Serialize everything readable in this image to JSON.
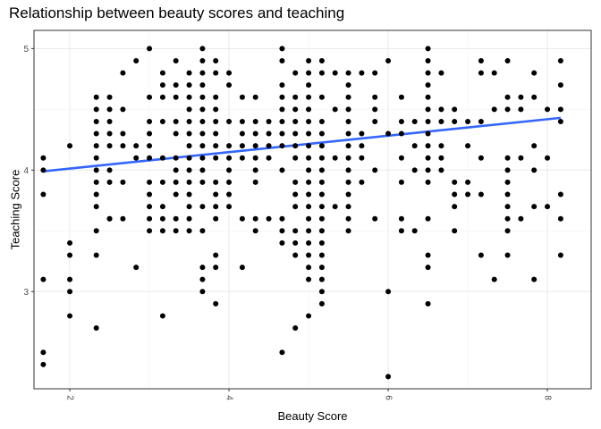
{
  "chart_data": {
    "type": "scatter",
    "title": "Relationship between beauty scores and teaching",
    "xlabel": "Beauty Score",
    "ylabel": "Teaching Score",
    "xlim": [
      1.55,
      8.55
    ],
    "ylim": [
      2.2,
      5.15
    ],
    "x_ticks": [
      {
        "value": 2,
        "label": "2"
      },
      {
        "value": 4,
        "label": "4"
      },
      {
        "value": 6,
        "label": "6"
      },
      {
        "value": 8,
        "label": "8"
      }
    ],
    "y_ticks": [
      {
        "value": 3,
        "label": "3"
      },
      {
        "value": 4,
        "label": "4"
      },
      {
        "value": 5,
        "label": "5"
      }
    ],
    "x_tick_label_rotation": "rotated, reading downward",
    "grid": true,
    "theme": "white background, light grey grid, black panel border",
    "point_color": "#000000",
    "trend_line": {
      "method": "linear fit",
      "color": "#3366FF",
      "x": [
        1.667,
        8.167
      ],
      "y": [
        3.99,
        4.43
      ]
    },
    "points": [
      [
        1.667,
        4.1
      ],
      [
        1.667,
        4.0
      ],
      [
        1.667,
        3.8
      ],
      [
        1.667,
        3.1
      ],
      [
        1.667,
        2.5
      ],
      [
        1.667,
        2.4
      ],
      [
        2.0,
        4.2
      ],
      [
        2.0,
        3.4
      ],
      [
        2.0,
        3.3
      ],
      [
        2.0,
        3.1
      ],
      [
        2.0,
        3.0
      ],
      [
        2.0,
        2.8
      ],
      [
        2.333,
        4.6
      ],
      [
        2.333,
        4.5
      ],
      [
        2.333,
        4.4
      ],
      [
        2.333,
        4.3
      ],
      [
        2.333,
        4.2
      ],
      [
        2.333,
        4.1
      ],
      [
        2.333,
        4.0
      ],
      [
        2.333,
        3.9
      ],
      [
        2.333,
        3.8
      ],
      [
        2.333,
        3.7
      ],
      [
        2.333,
        3.5
      ],
      [
        2.333,
        3.3
      ],
      [
        2.333,
        2.7
      ],
      [
        2.5,
        4.6
      ],
      [
        2.5,
        4.5
      ],
      [
        2.5,
        4.4
      ],
      [
        2.5,
        4.3
      ],
      [
        2.5,
        4.2
      ],
      [
        2.5,
        4.0
      ],
      [
        2.5,
        3.9
      ],
      [
        2.5,
        3.6
      ],
      [
        2.5,
        3.6
      ],
      [
        2.667,
        4.8
      ],
      [
        2.667,
        4.5
      ],
      [
        2.667,
        4.3
      ],
      [
        2.667,
        4.2
      ],
      [
        2.667,
        3.9
      ],
      [
        2.667,
        3.6
      ],
      [
        2.833,
        4.9
      ],
      [
        2.833,
        4.2
      ],
      [
        2.833,
        4.1
      ],
      [
        2.833,
        3.2
      ],
      [
        3.0,
        5.0
      ],
      [
        3.0,
        4.6
      ],
      [
        3.0,
        4.4
      ],
      [
        3.0,
        4.3
      ],
      [
        3.0,
        4.2
      ],
      [
        3.0,
        4.1
      ],
      [
        3.0,
        3.9
      ],
      [
        3.0,
        3.8
      ],
      [
        3.0,
        3.7
      ],
      [
        3.0,
        3.6
      ],
      [
        3.0,
        3.5
      ],
      [
        3.167,
        4.8
      ],
      [
        3.167,
        4.7
      ],
      [
        3.167,
        4.6
      ],
      [
        3.167,
        4.4
      ],
      [
        3.167,
        4.1
      ],
      [
        3.167,
        3.9
      ],
      [
        3.167,
        3.7
      ],
      [
        3.167,
        3.6
      ],
      [
        3.167,
        3.5
      ],
      [
        3.167,
        2.8
      ],
      [
        3.333,
        4.9
      ],
      [
        3.333,
        4.7
      ],
      [
        3.333,
        4.6
      ],
      [
        3.333,
        4.4
      ],
      [
        3.333,
        4.3
      ],
      [
        3.333,
        4.1
      ],
      [
        3.333,
        4.0
      ],
      [
        3.333,
        3.9
      ],
      [
        3.333,
        3.8
      ],
      [
        3.333,
        3.6
      ],
      [
        3.333,
        3.5
      ],
      [
        3.5,
        4.8
      ],
      [
        3.5,
        4.7
      ],
      [
        3.5,
        4.6
      ],
      [
        3.5,
        4.5
      ],
      [
        3.5,
        4.4
      ],
      [
        3.5,
        4.3
      ],
      [
        3.5,
        4.2
      ],
      [
        3.5,
        4.1
      ],
      [
        3.5,
        4.0
      ],
      [
        3.5,
        3.9
      ],
      [
        3.5,
        3.8
      ],
      [
        3.5,
        3.7
      ],
      [
        3.5,
        3.6
      ],
      [
        3.5,
        3.5
      ],
      [
        3.667,
        5.0
      ],
      [
        3.667,
        4.9
      ],
      [
        3.667,
        4.8
      ],
      [
        3.667,
        4.7
      ],
      [
        3.667,
        4.6
      ],
      [
        3.667,
        4.5
      ],
      [
        3.667,
        4.4
      ],
      [
        3.667,
        4.3
      ],
      [
        3.667,
        4.2
      ],
      [
        3.667,
        4.1
      ],
      [
        3.667,
        4.0
      ],
      [
        3.667,
        3.9
      ],
      [
        3.667,
        3.7
      ],
      [
        3.667,
        3.5
      ],
      [
        3.667,
        3.2
      ],
      [
        3.667,
        3.1
      ],
      [
        3.667,
        3.0
      ],
      [
        3.833,
        4.9
      ],
      [
        3.833,
        4.8
      ],
      [
        3.833,
        4.6
      ],
      [
        3.833,
        4.5
      ],
      [
        3.833,
        4.4
      ],
      [
        3.833,
        4.3
      ],
      [
        3.833,
        4.2
      ],
      [
        3.833,
        4.1
      ],
      [
        3.833,
        3.9
      ],
      [
        3.833,
        3.8
      ],
      [
        3.833,
        3.7
      ],
      [
        3.833,
        3.6
      ],
      [
        3.833,
        3.3
      ],
      [
        3.833,
        3.2
      ],
      [
        3.833,
        2.9
      ],
      [
        4.0,
        4.8
      ],
      [
        4.0,
        4.7
      ],
      [
        4.0,
        4.4
      ],
      [
        4.0,
        4.2
      ],
      [
        4.0,
        4.1
      ],
      [
        4.0,
        4.0
      ],
      [
        4.0,
        3.9
      ],
      [
        4.0,
        3.8
      ],
      [
        4.0,
        3.7
      ],
      [
        4.167,
        4.6
      ],
      [
        4.167,
        4.4
      ],
      [
        4.167,
        4.3
      ],
      [
        4.167,
        4.2
      ],
      [
        4.167,
        4.1
      ],
      [
        4.167,
        3.6
      ],
      [
        4.167,
        3.2
      ],
      [
        4.333,
        4.6
      ],
      [
        4.333,
        4.4
      ],
      [
        4.333,
        4.3
      ],
      [
        4.333,
        4.2
      ],
      [
        4.333,
        4.1
      ],
      [
        4.333,
        4.0
      ],
      [
        4.333,
        3.9
      ],
      [
        4.333,
        3.6
      ],
      [
        4.333,
        3.5
      ],
      [
        4.5,
        4.4
      ],
      [
        4.5,
        4.3
      ],
      [
        4.5,
        4.2
      ],
      [
        4.5,
        4.1
      ],
      [
        4.5,
        3.6
      ],
      [
        4.667,
        5.0
      ],
      [
        4.667,
        4.9
      ],
      [
        4.667,
        4.7
      ],
      [
        4.667,
        4.6
      ],
      [
        4.667,
        4.5
      ],
      [
        4.667,
        4.4
      ],
      [
        4.667,
        4.3
      ],
      [
        4.667,
        4.2
      ],
      [
        4.667,
        4.0
      ],
      [
        4.667,
        3.6
      ],
      [
        4.667,
        3.5
      ],
      [
        4.667,
        3.4
      ],
      [
        4.667,
        2.5
      ],
      [
        4.833,
        4.8
      ],
      [
        4.833,
        4.6
      ],
      [
        4.833,
        4.5
      ],
      [
        4.833,
        4.4
      ],
      [
        4.833,
        4.3
      ],
      [
        4.833,
        4.2
      ],
      [
        4.833,
        4.1
      ],
      [
        4.833,
        3.9
      ],
      [
        4.833,
        3.8
      ],
      [
        4.833,
        3.7
      ],
      [
        4.833,
        3.5
      ],
      [
        4.833,
        3.4
      ],
      [
        4.833,
        3.3
      ],
      [
        4.833,
        2.7
      ],
      [
        5.0,
        4.9
      ],
      [
        5.0,
        4.8
      ],
      [
        5.0,
        4.7
      ],
      [
        5.0,
        4.6
      ],
      [
        5.0,
        4.5
      ],
      [
        5.0,
        4.4
      ],
      [
        5.0,
        4.3
      ],
      [
        5.0,
        4.2
      ],
      [
        5.0,
        4.1
      ],
      [
        5.0,
        4.0
      ],
      [
        5.0,
        3.9
      ],
      [
        5.0,
        3.8
      ],
      [
        5.0,
        3.7
      ],
      [
        5.0,
        3.6
      ],
      [
        5.0,
        3.5
      ],
      [
        5.0,
        3.4
      ],
      [
        5.0,
        3.3
      ],
      [
        5.0,
        3.2
      ],
      [
        5.0,
        3.1
      ],
      [
        5.0,
        2.8
      ],
      [
        5.167,
        4.9
      ],
      [
        5.167,
        4.8
      ],
      [
        5.167,
        4.6
      ],
      [
        5.167,
        4.4
      ],
      [
        5.167,
        4.3
      ],
      [
        5.167,
        4.2
      ],
      [
        5.167,
        4.1
      ],
      [
        5.167,
        4.0
      ],
      [
        5.167,
        3.9
      ],
      [
        5.167,
        3.8
      ],
      [
        5.167,
        3.7
      ],
      [
        5.167,
        3.6
      ],
      [
        5.167,
        3.5
      ],
      [
        5.167,
        3.4
      ],
      [
        5.167,
        3.3
      ],
      [
        5.167,
        3.2
      ],
      [
        5.167,
        3.1
      ],
      [
        5.167,
        3.0
      ],
      [
        5.167,
        2.9
      ],
      [
        5.333,
        4.8
      ],
      [
        5.333,
        4.5
      ],
      [
        5.333,
        4.1
      ],
      [
        5.333,
        3.7
      ],
      [
        5.5,
        4.8
      ],
      [
        5.5,
        4.7
      ],
      [
        5.5,
        4.6
      ],
      [
        5.5,
        4.5
      ],
      [
        5.5,
        4.4
      ],
      [
        5.5,
        4.3
      ],
      [
        5.5,
        4.2
      ],
      [
        5.5,
        4.1
      ],
      [
        5.5,
        4.0
      ],
      [
        5.5,
        3.9
      ],
      [
        5.5,
        3.8
      ],
      [
        5.5,
        3.7
      ],
      [
        5.5,
        3.6
      ],
      [
        5.5,
        3.5
      ],
      [
        5.667,
        4.8
      ],
      [
        5.667,
        4.3
      ],
      [
        5.667,
        4.2
      ],
      [
        5.667,
        4.1
      ],
      [
        5.667,
        3.9
      ],
      [
        5.833,
        4.8
      ],
      [
        5.833,
        4.6
      ],
      [
        5.833,
        4.5
      ],
      [
        5.833,
        4.4
      ],
      [
        5.833,
        4.0
      ],
      [
        5.833,
        3.6
      ],
      [
        6.0,
        4.9
      ],
      [
        6.0,
        4.3
      ],
      [
        6.0,
        2.3
      ],
      [
        6.0,
        3.0
      ],
      [
        6.167,
        4.6
      ],
      [
        6.167,
        4.4
      ],
      [
        6.167,
        4.3
      ],
      [
        6.167,
        4.1
      ],
      [
        6.167,
        3.9
      ],
      [
        6.167,
        3.6
      ],
      [
        6.167,
        3.5
      ],
      [
        6.333,
        4.4
      ],
      [
        6.333,
        4.2
      ],
      [
        6.333,
        4.0
      ],
      [
        6.333,
        3.5
      ],
      [
        6.5,
        5.0
      ],
      [
        6.5,
        4.9
      ],
      [
        6.5,
        4.8
      ],
      [
        6.5,
        4.7
      ],
      [
        6.5,
        4.6
      ],
      [
        6.5,
        4.5
      ],
      [
        6.5,
        4.4
      ],
      [
        6.5,
        4.3
      ],
      [
        6.5,
        4.2
      ],
      [
        6.5,
        4.1
      ],
      [
        6.5,
        4.0
      ],
      [
        6.5,
        3.9
      ],
      [
        6.5,
        3.6
      ],
      [
        6.5,
        3.3
      ],
      [
        6.5,
        3.2
      ],
      [
        6.5,
        2.9
      ],
      [
        6.667,
        4.8
      ],
      [
        6.667,
        4.5
      ],
      [
        6.667,
        4.4
      ],
      [
        6.667,
        4.2
      ],
      [
        6.667,
        4.1
      ],
      [
        6.667,
        4.0
      ],
      [
        6.833,
        4.5
      ],
      [
        6.833,
        4.4
      ],
      [
        6.833,
        3.9
      ],
      [
        6.833,
        3.8
      ],
      [
        6.833,
        3.7
      ],
      [
        6.833,
        3.5
      ],
      [
        7.0,
        4.4
      ],
      [
        7.0,
        4.2
      ],
      [
        7.0,
        3.9
      ],
      [
        7.0,
        3.8
      ],
      [
        7.167,
        4.9
      ],
      [
        7.167,
        4.8
      ],
      [
        7.167,
        4.4
      ],
      [
        7.167,
        4.1
      ],
      [
        7.167,
        3.8
      ],
      [
        7.167,
        3.3
      ],
      [
        7.333,
        4.8
      ],
      [
        7.333,
        4.5
      ],
      [
        7.333,
        3.1
      ],
      [
        7.5,
        4.9
      ],
      [
        7.5,
        4.6
      ],
      [
        7.5,
        4.5
      ],
      [
        7.5,
        4.1
      ],
      [
        7.5,
        4.0
      ],
      [
        7.5,
        3.9
      ],
      [
        7.5,
        3.8
      ],
      [
        7.5,
        3.7
      ],
      [
        7.5,
        3.6
      ],
      [
        7.5,
        3.5
      ],
      [
        7.5,
        3.3
      ],
      [
        7.667,
        4.6
      ],
      [
        7.667,
        4.5
      ],
      [
        7.667,
        4.1
      ],
      [
        7.667,
        3.6
      ],
      [
        7.833,
        4.8
      ],
      [
        7.833,
        4.6
      ],
      [
        7.833,
        4.2
      ],
      [
        7.833,
        4.0
      ],
      [
        7.833,
        3.7
      ],
      [
        7.833,
        3.1
      ],
      [
        8.0,
        4.5
      ],
      [
        8.0,
        4.1
      ],
      [
        8.0,
        3.7
      ],
      [
        8.167,
        4.9
      ],
      [
        8.167,
        4.7
      ],
      [
        8.167,
        4.5
      ],
      [
        8.167,
        4.4
      ],
      [
        8.167,
        3.8
      ],
      [
        8.167,
        3.6
      ],
      [
        8.167,
        3.3
      ]
    ]
  }
}
